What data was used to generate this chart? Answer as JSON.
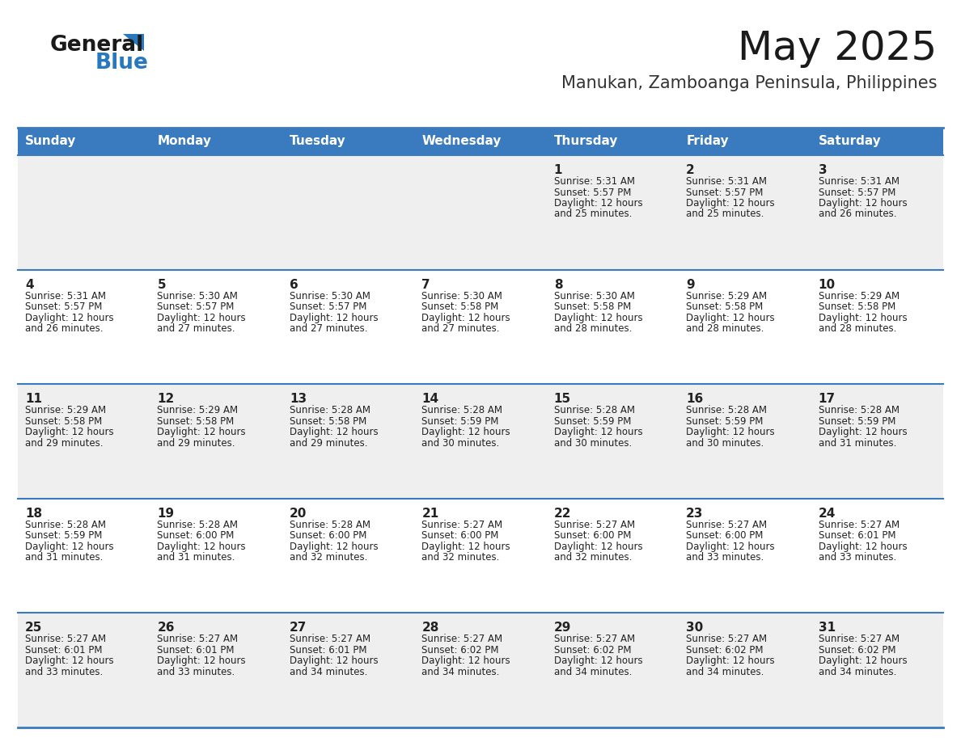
{
  "title": "May 2025",
  "subtitle": "Manukan, Zamboanga Peninsula, Philippines",
  "days_of_week": [
    "Sunday",
    "Monday",
    "Tuesday",
    "Wednesday",
    "Thursday",
    "Friday",
    "Saturday"
  ],
  "header_bg": "#3a7abf",
  "header_text": "#ffffff",
  "row_bg_odd": "#efefef",
  "row_bg_even": "#ffffff",
  "cell_text": "#222222",
  "divider_color": "#3a7abf",
  "title_color": "#1a1a1a",
  "subtitle_color": "#333333",
  "logo_general_color": "#1a1a1a",
  "logo_blue_color": "#2878be",
  "logo_triangle_color": "#2878be",
  "calendar_data": [
    [
      null,
      null,
      null,
      null,
      {
        "day": 1,
        "sunrise": "5:31 AM",
        "sunset": "5:57 PM",
        "daylight_extra": "25 minutes."
      },
      {
        "day": 2,
        "sunrise": "5:31 AM",
        "sunset": "5:57 PM",
        "daylight_extra": "25 minutes."
      },
      {
        "day": 3,
        "sunrise": "5:31 AM",
        "sunset": "5:57 PM",
        "daylight_extra": "26 minutes."
      }
    ],
    [
      {
        "day": 4,
        "sunrise": "5:31 AM",
        "sunset": "5:57 PM",
        "daylight_extra": "26 minutes."
      },
      {
        "day": 5,
        "sunrise": "5:30 AM",
        "sunset": "5:57 PM",
        "daylight_extra": "27 minutes."
      },
      {
        "day": 6,
        "sunrise": "5:30 AM",
        "sunset": "5:57 PM",
        "daylight_extra": "27 minutes."
      },
      {
        "day": 7,
        "sunrise": "5:30 AM",
        "sunset": "5:58 PM",
        "daylight_extra": "27 minutes."
      },
      {
        "day": 8,
        "sunrise": "5:30 AM",
        "sunset": "5:58 PM",
        "daylight_extra": "28 minutes."
      },
      {
        "day": 9,
        "sunrise": "5:29 AM",
        "sunset": "5:58 PM",
        "daylight_extra": "28 minutes."
      },
      {
        "day": 10,
        "sunrise": "5:29 AM",
        "sunset": "5:58 PM",
        "daylight_extra": "28 minutes."
      }
    ],
    [
      {
        "day": 11,
        "sunrise": "5:29 AM",
        "sunset": "5:58 PM",
        "daylight_extra": "29 minutes."
      },
      {
        "day": 12,
        "sunrise": "5:29 AM",
        "sunset": "5:58 PM",
        "daylight_extra": "29 minutes."
      },
      {
        "day": 13,
        "sunrise": "5:28 AM",
        "sunset": "5:58 PM",
        "daylight_extra": "29 minutes."
      },
      {
        "day": 14,
        "sunrise": "5:28 AM",
        "sunset": "5:59 PM",
        "daylight_extra": "30 minutes."
      },
      {
        "day": 15,
        "sunrise": "5:28 AM",
        "sunset": "5:59 PM",
        "daylight_extra": "30 minutes."
      },
      {
        "day": 16,
        "sunrise": "5:28 AM",
        "sunset": "5:59 PM",
        "daylight_extra": "30 minutes."
      },
      {
        "day": 17,
        "sunrise": "5:28 AM",
        "sunset": "5:59 PM",
        "daylight_extra": "31 minutes."
      }
    ],
    [
      {
        "day": 18,
        "sunrise": "5:28 AM",
        "sunset": "5:59 PM",
        "daylight_extra": "31 minutes."
      },
      {
        "day": 19,
        "sunrise": "5:28 AM",
        "sunset": "6:00 PM",
        "daylight_extra": "31 minutes."
      },
      {
        "day": 20,
        "sunrise": "5:28 AM",
        "sunset": "6:00 PM",
        "daylight_extra": "32 minutes."
      },
      {
        "day": 21,
        "sunrise": "5:27 AM",
        "sunset": "6:00 PM",
        "daylight_extra": "32 minutes."
      },
      {
        "day": 22,
        "sunrise": "5:27 AM",
        "sunset": "6:00 PM",
        "daylight_extra": "32 minutes."
      },
      {
        "day": 23,
        "sunrise": "5:27 AM",
        "sunset": "6:00 PM",
        "daylight_extra": "33 minutes."
      },
      {
        "day": 24,
        "sunrise": "5:27 AM",
        "sunset": "6:01 PM",
        "daylight_extra": "33 minutes."
      }
    ],
    [
      {
        "day": 25,
        "sunrise": "5:27 AM",
        "sunset": "6:01 PM",
        "daylight_extra": "33 minutes."
      },
      {
        "day": 26,
        "sunrise": "5:27 AM",
        "sunset": "6:01 PM",
        "daylight_extra": "33 minutes."
      },
      {
        "day": 27,
        "sunrise": "5:27 AM",
        "sunset": "6:01 PM",
        "daylight_extra": "34 minutes."
      },
      {
        "day": 28,
        "sunrise": "5:27 AM",
        "sunset": "6:02 PM",
        "daylight_extra": "34 minutes."
      },
      {
        "day": 29,
        "sunrise": "5:27 AM",
        "sunset": "6:02 PM",
        "daylight_extra": "34 minutes."
      },
      {
        "day": 30,
        "sunrise": "5:27 AM",
        "sunset": "6:02 PM",
        "daylight_extra": "34 minutes."
      },
      {
        "day": 31,
        "sunrise": "5:27 AM",
        "sunset": "6:02 PM",
        "daylight_extra": "34 minutes."
      }
    ]
  ]
}
